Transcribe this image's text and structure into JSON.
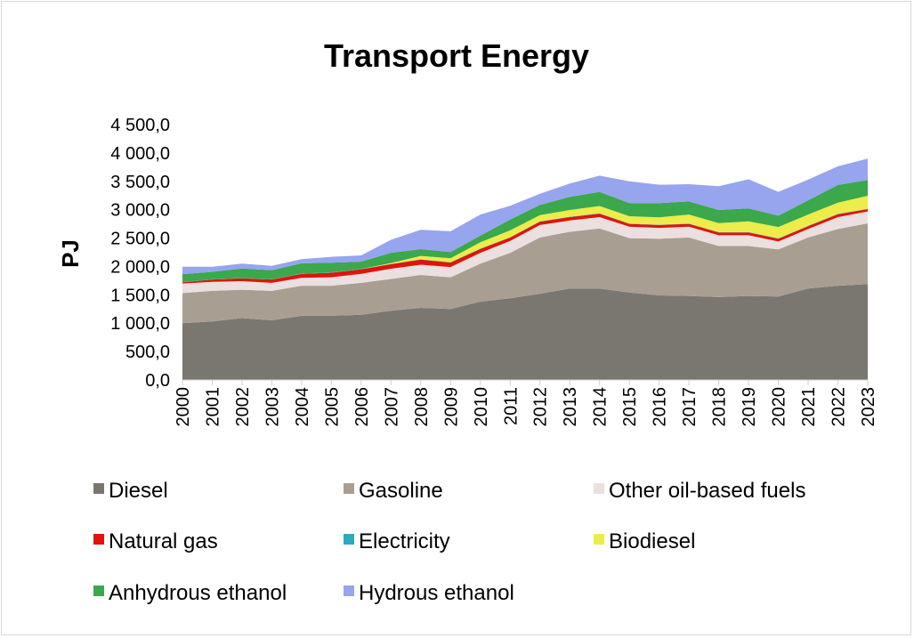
{
  "chart_data": {
    "type": "area",
    "stacked": true,
    "title": "Transport Energy",
    "xlabel": "",
    "ylabel": "PJ",
    "ylim": [
      0,
      4500
    ],
    "y_ticks": [
      "0,0",
      "500,0",
      "1 000,0",
      "1 500,0",
      "2 000,0",
      "2 500,0",
      "3 000,0",
      "3 500,0",
      "4 000,0",
      "4 500,0"
    ],
    "grid": false,
    "legend_position": "bottom",
    "x": [
      "2000",
      "2001",
      "2002",
      "2003",
      "2004",
      "2005",
      "2006",
      "2007",
      "2008",
      "2009",
      "2010",
      "2011",
      "2012",
      "2013",
      "2014",
      "2015",
      "2016",
      "2017",
      "2018",
      "2019",
      "2020",
      "2021",
      "2022",
      "2023"
    ],
    "series": [
      {
        "name": "Diesel",
        "color": "#7a7670",
        "values": [
          1000,
          1030,
          1090,
          1050,
          1130,
          1130,
          1150,
          1220,
          1270,
          1250,
          1380,
          1440,
          1520,
          1610,
          1610,
          1540,
          1490,
          1480,
          1460,
          1480,
          1470,
          1610,
          1660,
          1690
        ]
      },
      {
        "name": "Gasoline",
        "color": "#a89f92",
        "values": [
          530,
          540,
          500,
          520,
          530,
          530,
          560,
          560,
          580,
          560,
          670,
          800,
          990,
          1000,
          1060,
          960,
          1000,
          1030,
          900,
          880,
          830,
          900,
          1000,
          1070
        ]
      },
      {
        "name": "Other oil-based fuels",
        "color": "#ecdfdf",
        "values": [
          170,
          160,
          150,
          140,
          140,
          150,
          160,
          180,
          180,
          180,
          190,
          210,
          220,
          200,
          200,
          200,
          190,
          190,
          190,
          190,
          140,
          150,
          210,
          210
        ]
      },
      {
        "name": "Natural gas",
        "color": "#e0140c",
        "values": [
          20,
          40,
          50,
          60,
          70,
          80,
          80,
          80,
          90,
          80,
          70,
          60,
          60,
          60,
          60,
          50,
          50,
          50,
          50,
          50,
          50,
          50,
          50,
          40
        ]
      },
      {
        "name": "Electricity",
        "color": "#2ea9bf",
        "values": [
          5,
          5,
          5,
          5,
          5,
          5,
          5,
          5,
          5,
          5,
          5,
          5,
          5,
          5,
          5,
          5,
          5,
          5,
          5,
          5,
          5,
          5,
          5,
          5
        ]
      },
      {
        "name": "Biodiesel",
        "color": "#ecec4a",
        "values": [
          0,
          0,
          0,
          0,
          0,
          0,
          0,
          15,
          60,
          70,
          110,
          120,
          110,
          120,
          130,
          130,
          130,
          160,
          160,
          190,
          200,
          200,
          200,
          230
        ]
      },
      {
        "name": "Anhydrous ethanol",
        "color": "#3aa84b",
        "values": [
          140,
          130,
          170,
          160,
          180,
          170,
          130,
          180,
          120,
          110,
          120,
          190,
          180,
          230,
          250,
          230,
          250,
          230,
          230,
          230,
          200,
          250,
          310,
          280
        ]
      },
      {
        "name": "Hydrous ethanol",
        "color": "#97a4ee",
        "values": [
          130,
          90,
          85,
          75,
          75,
          105,
          110,
          230,
          340,
          365,
          370,
          245,
          195,
          235,
          285,
          385,
          325,
          305,
          420,
          510,
          420,
          365,
          330,
          375
        ]
      }
    ]
  }
}
